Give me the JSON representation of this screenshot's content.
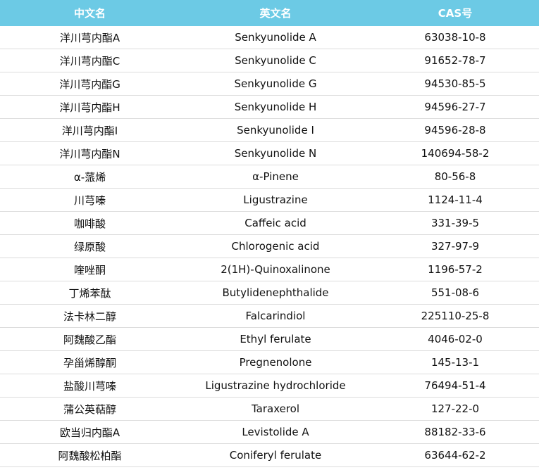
{
  "table": {
    "headers": [
      "中文名",
      "英文名",
      "CAS号"
    ],
    "header_color": "#6ccae5",
    "rows": [
      [
        "洋川芎内酯A",
        "Senkyunolide A",
        "63038-10-8"
      ],
      [
        "洋川芎内酯C",
        "Senkyunolide C",
        "91652-78-7"
      ],
      [
        "洋川芎内酯G",
        "Senkyunolide G",
        "94530-85-5"
      ],
      [
        "洋川芎内酯H",
        "Senkyunolide H",
        "94596-27-7"
      ],
      [
        "洋川芎内酯I",
        "Senkyunolide I",
        "94596-28-8"
      ],
      [
        "洋川芎内酯N",
        "Senkyunolide N",
        "140694-58-2"
      ],
      [
        "α-蒎烯",
        "α-Pinene",
        "80-56-8"
      ],
      [
        "川芎嗪",
        "Ligustrazine",
        "1124-11-4"
      ],
      [
        "咖啡酸",
        "Caffeic acid",
        "331-39-5"
      ],
      [
        "绿原酸",
        "Chlorogenic acid",
        "327-97-9"
      ],
      [
        "喹唑酮",
        "2(1H)-Quinoxalinone",
        "1196-57-2"
      ],
      [
        "丁烯苯酞",
        "Butylidenephthalide",
        "551-08-6"
      ],
      [
        "法卡林二醇",
        "Falcarindiol",
        "225110-25-8"
      ],
      [
        "阿魏酸乙酯",
        "Ethyl ferulate",
        "4046-02-0"
      ],
      [
        "孕甾烯醇酮",
        "Pregnenolone",
        "145-13-1"
      ],
      [
        "盐酸川芎嗪",
        "Ligustrazine hydrochloride",
        "76494-51-4"
      ],
      [
        "蒲公英萜醇",
        "Taraxerol",
        "127-22-0"
      ],
      [
        "欧当归内酯A",
        "Levistolide A",
        "88182-33-6"
      ],
      [
        "阿魏酸松柏酯",
        "Coniferyl ferulate",
        "63644-62-2"
      ]
    ]
  }
}
